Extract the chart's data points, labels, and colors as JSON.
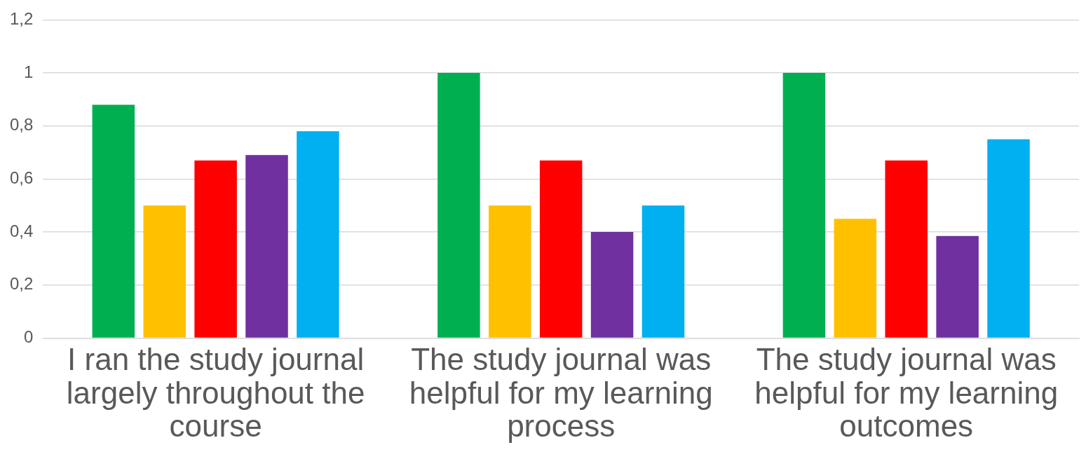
{
  "chart_data": {
    "type": "bar",
    "categories": [
      "I ran the study journal largely throughout the course",
      "The study journal was helpful for my learning process",
      "The study journal was helpful for my learning outcomes"
    ],
    "series": [
      {
        "color": "#00b050",
        "values": [
          0.88,
          1,
          1
        ]
      },
      {
        "color": "#ffc000",
        "values": [
          0.5,
          0.5,
          0.45
        ]
      },
      {
        "color": "#ff0000",
        "values": [
          0.67,
          0.67,
          0.67
        ]
      },
      {
        "color": "#7030a0",
        "values": [
          0.69,
          0.4,
          0.385
        ]
      },
      {
        "color": "#00b0f0",
        "values": [
          0.78,
          0.5,
          0.75
        ]
      }
    ],
    "ylim": [
      0,
      1.2
    ],
    "yticks": [
      0,
      {
        "value": 0.2,
        "label": "0,2"
      },
      {
        "value": 0.4,
        "label": "0,4"
      },
      {
        "value": 0.6,
        "label": "0,6"
      },
      {
        "value": 0.8,
        "label": "0,8"
      },
      1,
      {
        "value": 1.2,
        "label": "1,2"
      }
    ],
    "grid": "y",
    "legend": false
  }
}
